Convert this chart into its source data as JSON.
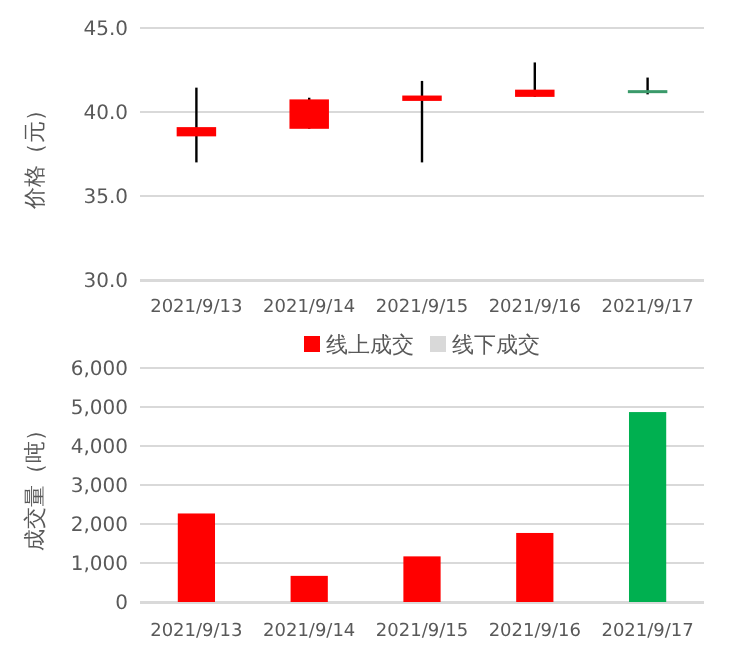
{
  "chart_data": [
    {
      "type": "candlestick",
      "ylabel": "价格（元）",
      "categories": [
        "2021/9/13",
        "2021/9/14",
        "2021/9/15",
        "2021/9/16",
        "2021/9/17"
      ],
      "ohlc": [
        [
          38.55,
          41.45,
          37.0,
          39.1
        ],
        [
          39.0,
          40.85,
          39.0,
          40.75
        ],
        [
          40.66,
          41.85,
          37.0,
          40.98
        ],
        [
          40.9,
          42.95,
          40.9,
          41.33
        ],
        [
          41.3,
          42.05,
          41.05,
          41.2
        ]
      ],
      "colors": [
        "#ff0000",
        "#ff0000",
        "#ff0000",
        "#ff0000",
        "#3a9a6a"
      ],
      "ylim": [
        30,
        45
      ],
      "yticks": [
        {
          "value": 30,
          "label": "30.0"
        },
        {
          "value": 35,
          "label": "35.0"
        },
        {
          "value": 40,
          "label": "40.0"
        },
        {
          "value": 45,
          "label": "45.0"
        }
      ],
      "grid": "y"
    },
    {
      "type": "bar",
      "ylabel": "成交量（吨）",
      "categories": [
        "2021/9/13",
        "2021/9/14",
        "2021/9/15",
        "2021/9/16",
        "2021/9/17"
      ],
      "stacked": true,
      "legend": "top",
      "grid": "y",
      "series": [
        {
          "name": "线上成交",
          "color": "#ff0000",
          "colors": [
            "#ff0000",
            "#ff0000",
            "#ff0000",
            "#ff0000",
            "#00b050"
          ],
          "values": [
            2270,
            670,
            1170,
            1770,
            4870
          ]
        },
        {
          "name": "线下成交",
          "color": "#d9d9d9",
          "values": [
            0,
            0,
            0,
            0,
            0
          ]
        }
      ],
      "ylim": [
        0,
        6000
      ],
      "yticks": [
        {
          "value": 0,
          "label": "0"
        },
        {
          "value": 1000,
          "label": "1,000"
        },
        {
          "value": 2000,
          "label": "2,000"
        },
        {
          "value": 3000,
          "label": "3,000"
        },
        {
          "value": 4000,
          "label": "4,000"
        },
        {
          "value": 5000,
          "label": "5,000"
        },
        {
          "value": 6000,
          "label": "6,000"
        }
      ]
    }
  ]
}
